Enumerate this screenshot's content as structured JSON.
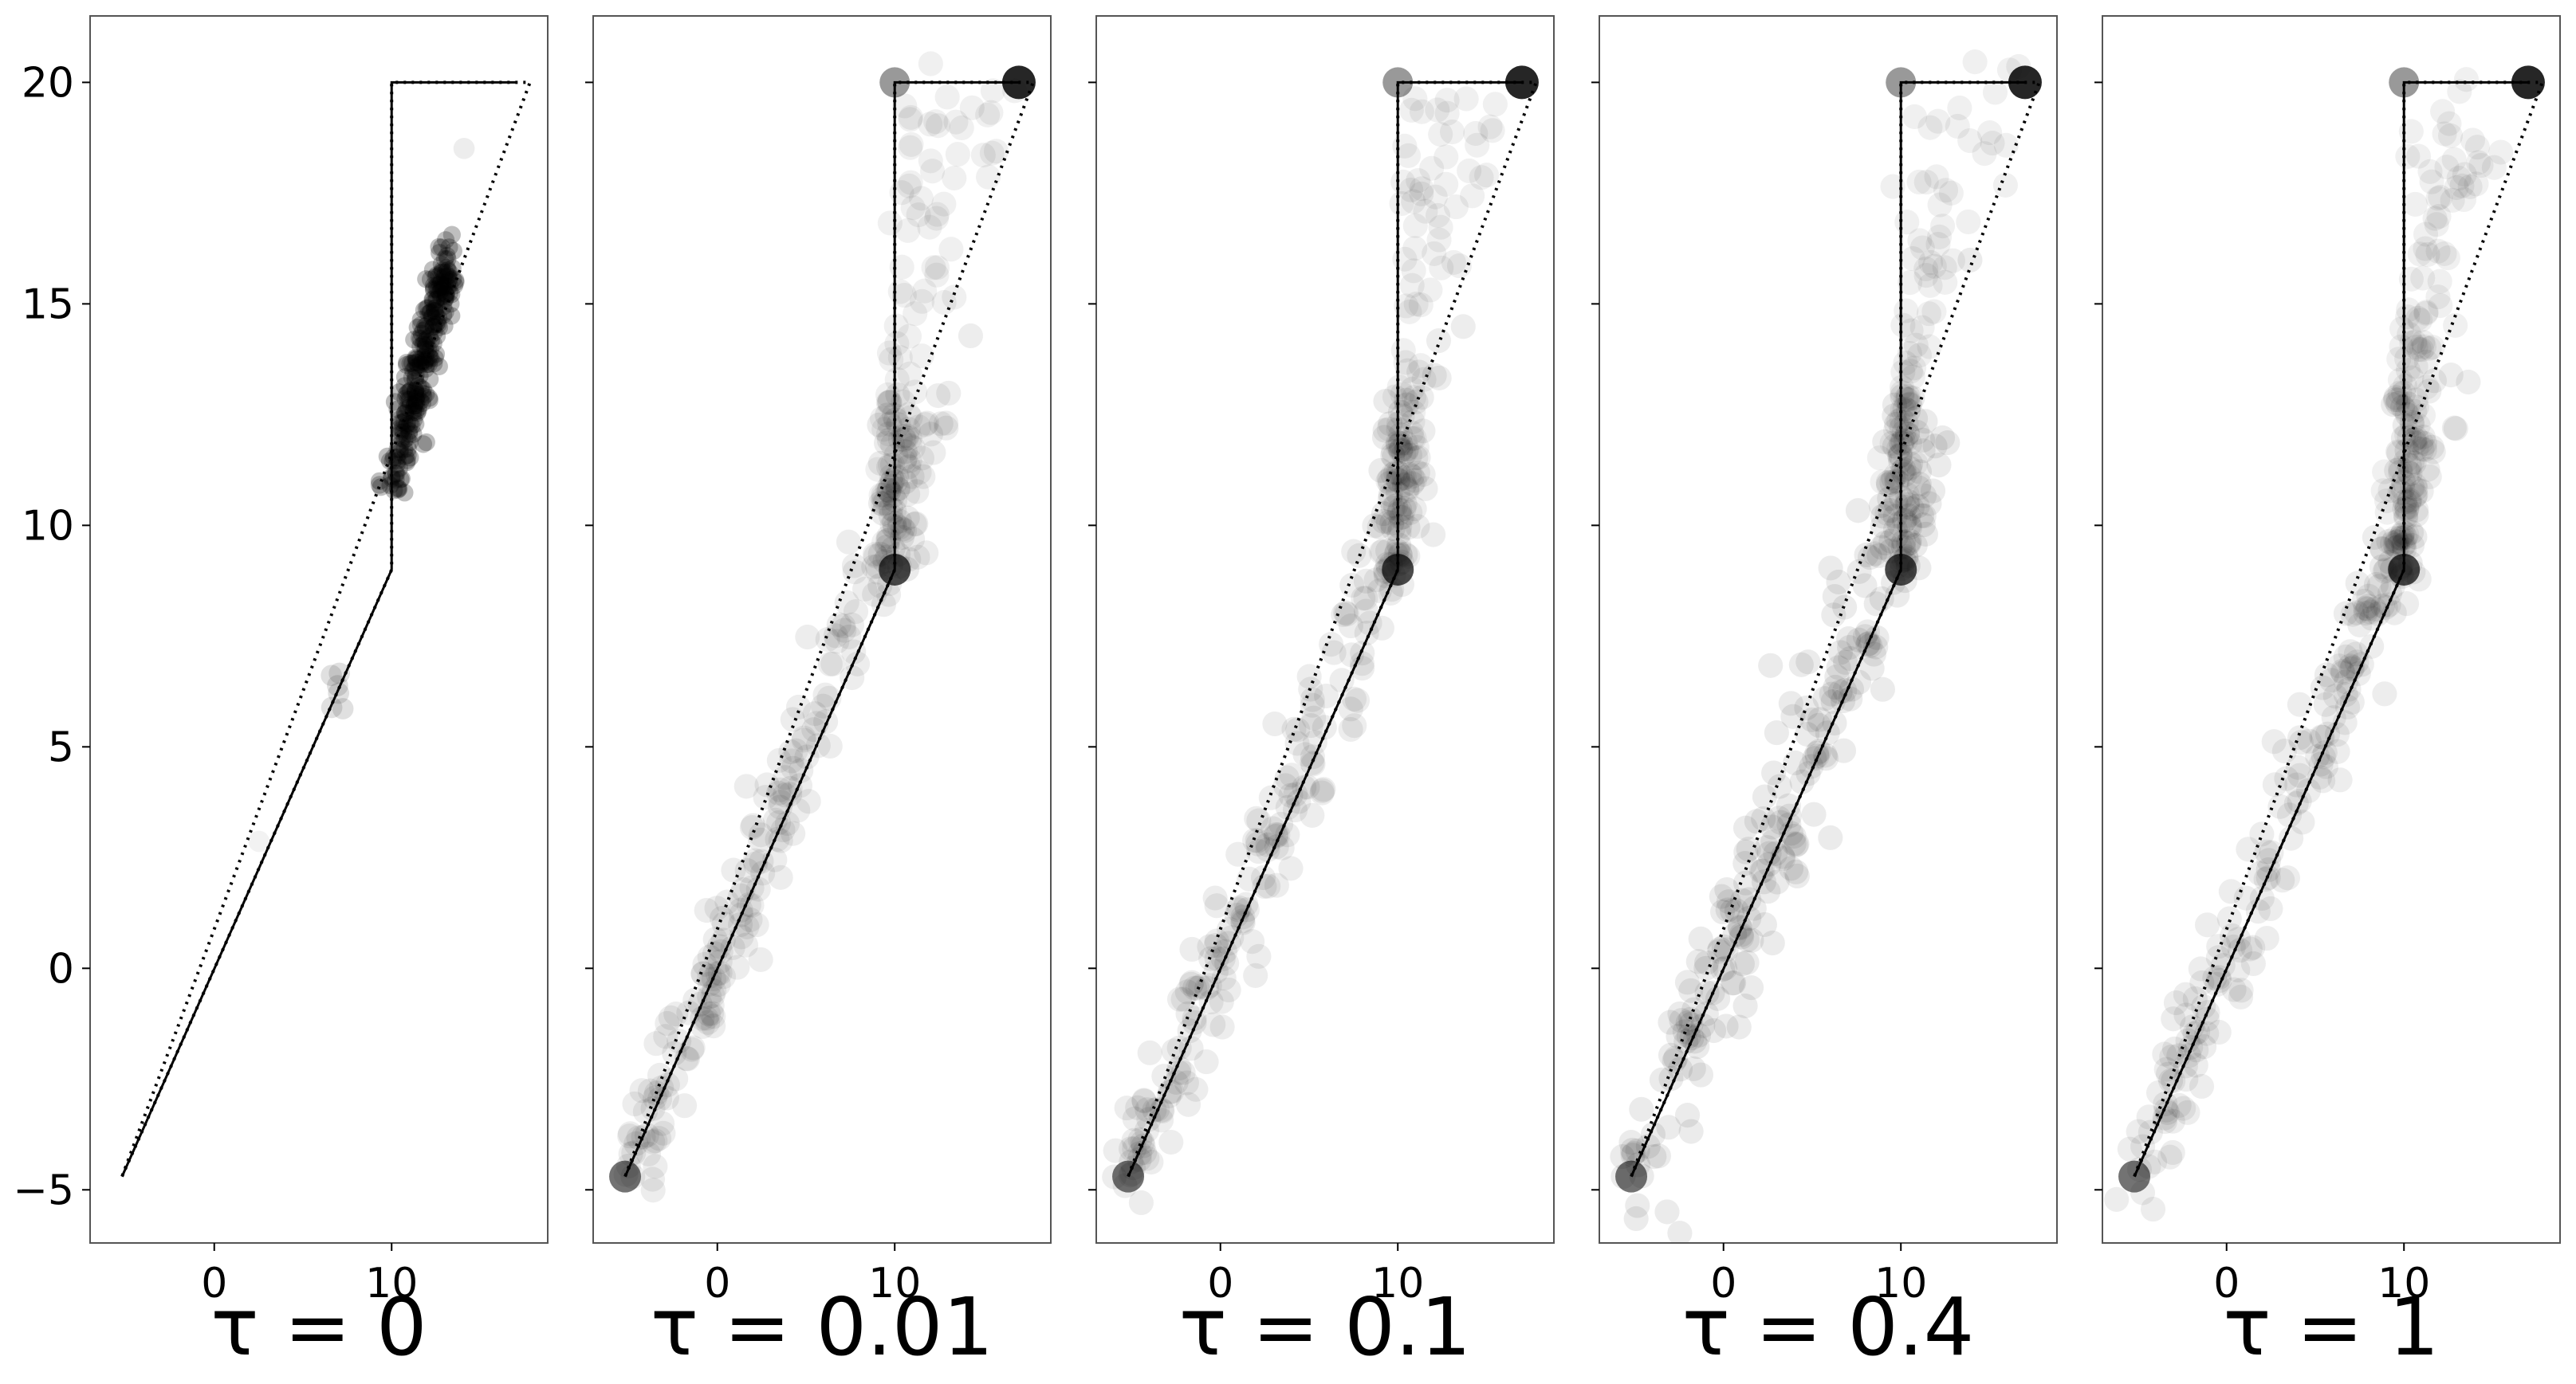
{
  "chart_data": [
    {
      "type": "scatter",
      "caption": "τ = 0",
      "xticks": [
        0,
        10
      ],
      "yticks": [
        20,
        15,
        10,
        5,
        0,
        -5
      ],
      "xlim": [
        -7,
        18.8
      ],
      "ylim": [
        -6.2,
        21.5
      ],
      "start_point": [
        -5.2,
        -4.7
      ],
      "via_point": [
        10,
        9
      ],
      "goal_point": [
        17,
        20
      ],
      "corridor_line": [
        [
          -5.2,
          -4.7
        ],
        [
          10,
          9
        ],
        [
          10,
          20
        ],
        [
          17.8,
          20
        ],
        [
          -5.2,
          -4.7
        ]
      ],
      "demo_path": [
        [
          -5.2,
          -4.7
        ],
        [
          10,
          9
        ],
        [
          10,
          20
        ],
        [
          17,
          20
        ]
      ],
      "sample_clusters": [
        {
          "x": 12,
          "y": 13.5,
          "dx": 1.4,
          "dy": 2.4,
          "count": 260,
          "radius": 0.5,
          "opacity": 0.25
        },
        {
          "x": 6.8,
          "y": 6,
          "dx": 0.5,
          "dy": 0.4,
          "count": 6,
          "radius": 0.6,
          "opacity": 0.12
        },
        {
          "x": 14.5,
          "y": 18.5,
          "dx": 0.2,
          "dy": 0.2,
          "count": 1,
          "radius": 0.6,
          "opacity": 0.07
        },
        {
          "x": 2.5,
          "y": 2.8,
          "dx": 0.3,
          "dy": 0.3,
          "count": 1,
          "radius": 0.6,
          "opacity": 0.05
        }
      ]
    },
    {
      "type": "scatter",
      "caption": "τ = 0.01",
      "xticks": [
        0,
        10
      ],
      "yticks": [
        20,
        15,
        10,
        5,
        0,
        -5
      ],
      "xlim": [
        -7,
        18.8
      ],
      "ylim": [
        -6.2,
        21.5
      ],
      "start_point": [
        -5.2,
        -4.7
      ],
      "via_point": [
        10,
        9
      ],
      "goal_point": [
        17,
        20
      ],
      "corridor_line": [
        [
          -5.2,
          -4.7
        ],
        [
          10,
          9
        ],
        [
          10,
          20
        ],
        [
          17.8,
          20
        ],
        [
          -5.2,
          -4.7
        ]
      ],
      "demo_path": [
        [
          -5.2,
          -4.7
        ],
        [
          10,
          9
        ],
        [
          10,
          20
        ],
        [
          17,
          20
        ]
      ],
      "sample_clusters": [
        {
          "along": "band",
          "count": 220,
          "spread": 1.2,
          "radius": 0.7,
          "opacity": 0.07
        },
        {
          "along": "top",
          "count": 90,
          "spread": 1.3,
          "radius": 0.7,
          "opacity": 0.06
        },
        {
          "along": "vertical",
          "count": 40,
          "spread": 0.4,
          "radius": 0.7,
          "opacity": 0.08
        }
      ]
    },
    {
      "type": "scatter",
      "caption": "τ = 0.1",
      "xticks": [
        0,
        10
      ],
      "yticks": [
        20,
        15,
        10,
        5,
        0,
        -5
      ],
      "xlim": [
        -7,
        18.8
      ],
      "ylim": [
        -6.2,
        21.5
      ],
      "start_point": [
        -5.2,
        -4.7
      ],
      "via_point": [
        10,
        9
      ],
      "goal_point": [
        17,
        20
      ],
      "corridor_line": [
        [
          -5.2,
          -4.7
        ],
        [
          10,
          9
        ],
        [
          10,
          20
        ],
        [
          17.8,
          20
        ],
        [
          -5.2,
          -4.7
        ]
      ],
      "demo_path": [
        [
          -5.2,
          -4.7
        ],
        [
          10,
          9
        ],
        [
          10,
          20
        ],
        [
          17,
          20
        ]
      ],
      "sample_clusters": [
        {
          "along": "band",
          "count": 220,
          "spread": 1.2,
          "radius": 0.7,
          "opacity": 0.07
        },
        {
          "along": "top",
          "count": 90,
          "spread": 1.3,
          "radius": 0.7,
          "opacity": 0.06
        },
        {
          "along": "vertical",
          "count": 40,
          "spread": 0.4,
          "radius": 0.7,
          "opacity": 0.08
        }
      ]
    },
    {
      "type": "scatter",
      "caption": "τ = 0.4",
      "xticks": [
        0,
        10
      ],
      "yticks": [
        20,
        15,
        10,
        5,
        0,
        -5
      ],
      "xlim": [
        -7,
        18.8
      ],
      "ylim": [
        -6.2,
        21.5
      ],
      "start_point": [
        -5.2,
        -4.7
      ],
      "via_point": [
        10,
        9
      ],
      "goal_point": [
        17,
        20
      ],
      "corridor_line": [
        [
          -5.2,
          -4.7
        ],
        [
          10,
          9
        ],
        [
          10,
          20
        ],
        [
          17.8,
          20
        ],
        [
          -5.2,
          -4.7
        ]
      ],
      "demo_path": [
        [
          -5.2,
          -4.7
        ],
        [
          10,
          9
        ],
        [
          10,
          20
        ],
        [
          17,
          20
        ]
      ],
      "sample_clusters": [
        {
          "along": "band",
          "count": 240,
          "spread": 1.6,
          "radius": 0.7,
          "opacity": 0.08
        },
        {
          "along": "top",
          "count": 80,
          "spread": 1.2,
          "radius": 0.7,
          "opacity": 0.06
        },
        {
          "along": "vertical",
          "count": 45,
          "spread": 0.5,
          "radius": 0.7,
          "opacity": 0.08
        }
      ]
    },
    {
      "type": "scatter",
      "caption": "τ = 1",
      "xticks": [
        0,
        10
      ],
      "yticks": [
        20,
        15,
        10,
        5,
        0,
        -5
      ],
      "xlim": [
        -7,
        18.8
      ],
      "ylim": [
        -6.2,
        21.5
      ],
      "start_point": [
        -5.2,
        -4.7
      ],
      "via_point": [
        10,
        9
      ],
      "goal_point": [
        17,
        20
      ],
      "corridor_line": [
        [
          -5.2,
          -4.7
        ],
        [
          10,
          9
        ],
        [
          10,
          20
        ],
        [
          17.8,
          20
        ],
        [
          -5.2,
          -4.7
        ]
      ],
      "demo_path": [
        [
          -5.2,
          -4.7
        ],
        [
          10,
          9
        ],
        [
          10,
          20
        ],
        [
          17,
          20
        ]
      ],
      "sample_clusters": [
        {
          "along": "band",
          "count": 220,
          "spread": 1.2,
          "radius": 0.7,
          "opacity": 0.07
        },
        {
          "along": "top",
          "count": 100,
          "spread": 1.4,
          "radius": 0.7,
          "opacity": 0.06
        },
        {
          "along": "vertical",
          "count": 40,
          "spread": 0.4,
          "radius": 0.7,
          "opacity": 0.08
        }
      ]
    }
  ]
}
